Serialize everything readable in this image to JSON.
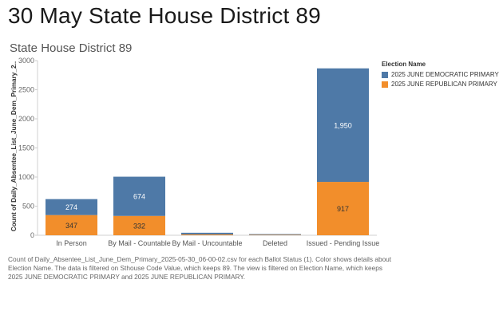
{
  "page_title": "30 May State House District 89",
  "chart_title": "State House District 89",
  "legend": {
    "title": "Election Name",
    "items": [
      {
        "label": "2025 JUNE DEMOCRATIC PRIMARY",
        "color": "#4e79a7"
      },
      {
        "label": "2025 JUNE REPUBLICAN PRIMARY",
        "color": "#f28e2b"
      }
    ]
  },
  "caption": "Count of Daily_Absentee_List_June_Dem_Primary_2025-05-30_06-00-02.csv for each Ballot Status (1).  Color shows details about Election Name. The data is filtered on Sthouse Code Value, which keeps 89. The view is filtered on Election Name, which keeps 2025 JUNE DEMOCRATIC PRIMARY and 2025 JUNE REPUBLICAN PRIMARY.",
  "chart_data": {
    "type": "bar",
    "stacked": true,
    "categories": [
      "In Person",
      "By Mail - Countable",
      "By Mail - Uncountable",
      "Deleted",
      "Issued - Pending Issue"
    ],
    "series": [
      {
        "name": "2025 JUNE REPUBLICAN PRIMARY",
        "color": "#f28e2b",
        "values": [
          347,
          332,
          15,
          8,
          917
        ]
      },
      {
        "name": "2025 JUNE DEMOCRATIC PRIMARY",
        "color": "#4e79a7",
        "values": [
          274,
          674,
          28,
          12,
          1950
        ]
      }
    ],
    "data_labels": [
      {
        "category": "In Person",
        "series": "2025 JUNE REPUBLICAN PRIMARY",
        "text": "347"
      },
      {
        "category": "In Person",
        "series": "2025 JUNE DEMOCRATIC PRIMARY",
        "text": "274"
      },
      {
        "category": "By Mail - Countable",
        "series": "2025 JUNE REPUBLICAN PRIMARY",
        "text": "332"
      },
      {
        "category": "By Mail - Countable",
        "series": "2025 JUNE DEMOCRATIC PRIMARY",
        "text": "674"
      },
      {
        "category": "Issued - Pending Issue",
        "series": "2025 JUNE REPUBLICAN PRIMARY",
        "text": "917"
      },
      {
        "category": "Issued - Pending Issue",
        "series": "2025 JUNE DEMOCRATIC PRIMARY",
        "text": "1,950"
      }
    ],
    "ylabel": "Count of Daily_Absentee_List_June_Dem_Primary_2..",
    "xlabel": "",
    "ylim": [
      0,
      3000
    ],
    "yticks": [
      0,
      500,
      1000,
      1500,
      2000,
      2500,
      3000
    ],
    "grid": false
  }
}
